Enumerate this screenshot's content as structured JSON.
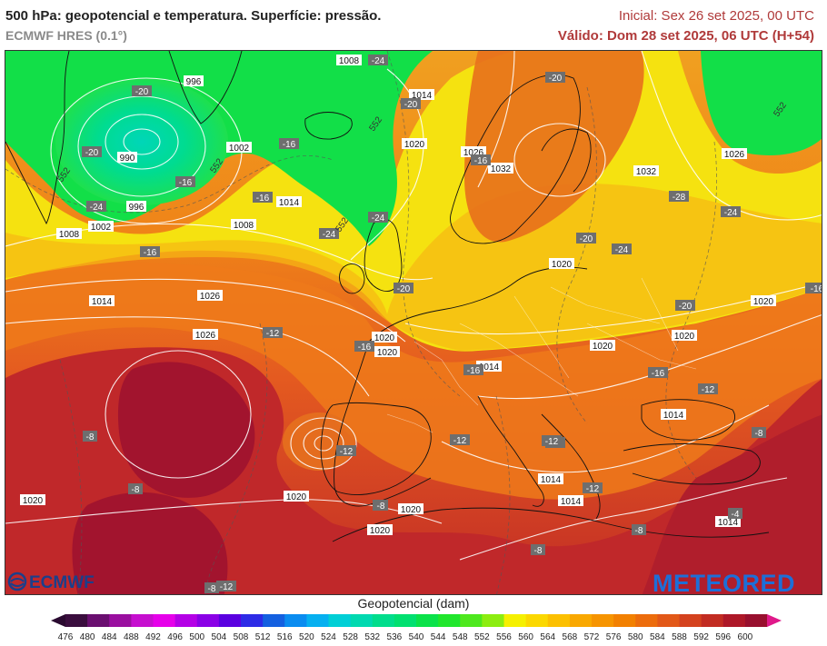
{
  "header": {
    "title": "500 hPa: geopotencial e temperatura. Superfície: pressão.",
    "model": "ECMWF HRES (0.1°)",
    "initial": "Inicial: Sex 26 set 2025, 00 UTC",
    "valid": "Válido: Dom 28 set 2025, 06 UTC (H+54)"
  },
  "map": {
    "pressure_labels": [
      "1008",
      "996",
      "1014",
      "1002",
      "990",
      "996",
      "1002",
      "1008",
      "1008",
      "1014",
      "1014",
      "1020",
      "1026",
      "1026",
      "1032",
      "1032",
      "1026",
      "1026",
      "1020",
      "1020",
      "1020",
      "1020",
      "1020",
      "1020",
      "1014",
      "1014",
      "1014",
      "1014",
      "1020",
      "1020",
      "1020",
      "1020",
      "1014"
    ],
    "temperature_labels": [
      "-24",
      "-20",
      "-20",
      "-16",
      "-20",
      "-24",
      "-24",
      "-16",
      "-24",
      "-20",
      "-20",
      "-16",
      "-16",
      "-12",
      "-20",
      "-24",
      "-28",
      "-24",
      "-20",
      "-16",
      "-12",
      "-16",
      "-16",
      "-20",
      "-16",
      "-16",
      "-12",
      "-12",
      "-8",
      "-8",
      "-8",
      "-8",
      "-8",
      "-8",
      "-12",
      "-12",
      "-12",
      "-4",
      "-8",
      "-8",
      "-16"
    ],
    "contour_labels": [
      "552",
      "552",
      "552",
      "552",
      "552"
    ],
    "colors": {
      "low_geopotential": "#00dd7a",
      "mid_geopotential": "#f5f000",
      "high_geopotential": "#e66a18",
      "highest_geopotential": "#a9122e"
    }
  },
  "logos": {
    "left": "ECMWF",
    "right": "METEORED"
  },
  "legend": {
    "title": "Geopotencial (dam)",
    "ticks": [
      "476",
      "480",
      "484",
      "488",
      "492",
      "496",
      "500",
      "504",
      "508",
      "512",
      "516",
      "520",
      "524",
      "528",
      "532",
      "536",
      "540",
      "544",
      "548",
      "552",
      "556",
      "560",
      "564",
      "568",
      "572",
      "576",
      "580",
      "584",
      "588",
      "592",
      "596",
      "600"
    ],
    "colors": [
      "#3a0e3e",
      "#6a0f70",
      "#9a0f9f",
      "#c60fcf",
      "#e600ea",
      "#b400e6",
      "#8a00e6",
      "#5a00e0",
      "#2d2be6",
      "#1460e0",
      "#0a8cf0",
      "#06b0f0",
      "#00cfd6",
      "#00d9b0",
      "#00dd8c",
      "#00e070",
      "#0ae24a",
      "#20e62c",
      "#4ee81e",
      "#8ced10",
      "#f5f000",
      "#fbd800",
      "#fcc000",
      "#f9a800",
      "#f69400",
      "#f28000",
      "#ec6c0c",
      "#e25818",
      "#d4421e",
      "#c22c22",
      "#ae1828",
      "#98102e"
    ]
  }
}
